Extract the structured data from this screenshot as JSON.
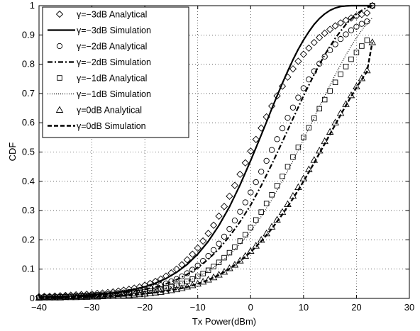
{
  "chart_data": {
    "type": "line",
    "title": "",
    "xlabel": "Tx Power(dBm)",
    "ylabel": "CDF",
    "xlim": [
      -40,
      30
    ],
    "ylim": [
      0,
      1
    ],
    "xticks": [
      -40,
      -30,
      -20,
      -10,
      0,
      10,
      20,
      30
    ],
    "yticks": [
      0,
      0.1,
      0.2,
      0.3,
      0.4,
      0.5,
      0.6,
      0.7,
      0.8,
      0.9,
      1
    ],
    "xtick_labels": [
      "−40",
      "−30",
      "−20",
      "−10",
      "0",
      "10",
      "20",
      "30"
    ],
    "ytick_labels": [
      "0",
      "0.1",
      "0.2",
      "0.3",
      "0.4",
      "0.5",
      "0.6",
      "0.7",
      "0.8",
      "0.9",
      "1"
    ],
    "grid": true,
    "grid_style": "dotted",
    "legend_position": "top-left",
    "series": [
      {
        "name": "γ=−3dB Analytical",
        "style": "markers",
        "marker": "diamond",
        "color": "#000000",
        "x": [
          -40,
          -39,
          -38,
          -37,
          -36,
          -35,
          -34,
          -33,
          -32,
          -31,
          -30,
          -29,
          -28,
          -27,
          -26,
          -25,
          -24,
          -23,
          -22,
          -21,
          -20,
          -19,
          -18,
          -17,
          -16,
          -15,
          -14,
          -13,
          -12,
          -11,
          -10,
          -9,
          -8,
          -7,
          -6,
          -5,
          -4,
          -3,
          -2,
          -1,
          0,
          1,
          2,
          3,
          4,
          5,
          6,
          7,
          8,
          9,
          10,
          11,
          12,
          13,
          14,
          15,
          16,
          17,
          18,
          19,
          20,
          21,
          22,
          23
        ],
        "y": [
          0.006,
          0.007,
          0.007,
          0.008,
          0.009,
          0.01,
          0.011,
          0.012,
          0.013,
          0.014,
          0.015,
          0.017,
          0.018,
          0.02,
          0.022,
          0.025,
          0.028,
          0.031,
          0.035,
          0.039,
          0.045,
          0.051,
          0.058,
          0.066,
          0.076,
          0.087,
          0.1,
          0.115,
          0.132,
          0.151,
          0.172,
          0.196,
          0.222,
          0.25,
          0.281,
          0.314,
          0.349,
          0.386,
          0.424,
          0.463,
          0.503,
          0.543,
          0.582,
          0.62,
          0.657,
          0.692,
          0.725,
          0.756,
          0.784,
          0.81,
          0.834,
          0.855,
          0.874,
          0.891,
          0.906,
          0.919,
          0.931,
          0.941,
          0.95,
          0.958,
          0.965,
          0.97,
          0.975,
          1.0
        ]
      },
      {
        "name": "γ=−3dB Simulation",
        "style": "solid",
        "color": "#000000",
        "x": [
          -40,
          -38,
          -36,
          -34,
          -32,
          -30,
          -28,
          -26,
          -24,
          -22,
          -20,
          -18,
          -16,
          -14,
          -12,
          -10,
          -8,
          -6,
          -4,
          -2,
          0,
          1,
          2,
          3,
          4,
          5,
          6,
          7,
          8,
          9,
          10,
          11,
          12,
          13,
          14,
          15,
          16,
          17,
          18,
          19,
          20,
          21,
          22,
          23
        ],
        "y": [
          0.005,
          0.006,
          0.007,
          0.008,
          0.01,
          0.012,
          0.015,
          0.019,
          0.024,
          0.031,
          0.04,
          0.052,
          0.068,
          0.089,
          0.116,
          0.151,
          0.195,
          0.249,
          0.313,
          0.388,
          0.471,
          0.514,
          0.558,
          0.603,
          0.648,
          0.692,
          0.735,
          0.776,
          0.815,
          0.851,
          0.883,
          0.911,
          0.936,
          0.956,
          0.972,
          0.984,
          0.992,
          0.997,
          0.999,
          1.0,
          1.0,
          1.0,
          1.0,
          1.0
        ]
      },
      {
        "name": "γ=−2dB Analytical",
        "style": "markers",
        "marker": "circle",
        "color": "#000000",
        "x": [
          -40,
          -39,
          -38,
          -37,
          -36,
          -35,
          -34,
          -33,
          -32,
          -31,
          -30,
          -29,
          -28,
          -27,
          -26,
          -25,
          -24,
          -23,
          -22,
          -21,
          -20,
          -19,
          -18,
          -17,
          -16,
          -15,
          -14,
          -13,
          -12,
          -11,
          -10,
          -9,
          -8,
          -7,
          -6,
          -5,
          -4,
          -3,
          -2,
          -1,
          0,
          1,
          2,
          3,
          4,
          5,
          6,
          7,
          8,
          9,
          10,
          11,
          12,
          13,
          14,
          15,
          16,
          17,
          18,
          19,
          20,
          21,
          22,
          23
        ],
        "y": [
          0.004,
          0.005,
          0.005,
          0.006,
          0.006,
          0.007,
          0.007,
          0.008,
          0.009,
          0.01,
          0.011,
          0.012,
          0.013,
          0.014,
          0.016,
          0.018,
          0.02,
          0.022,
          0.025,
          0.028,
          0.031,
          0.035,
          0.04,
          0.045,
          0.051,
          0.058,
          0.066,
          0.075,
          0.086,
          0.098,
          0.112,
          0.128,
          0.145,
          0.165,
          0.187,
          0.211,
          0.237,
          0.266,
          0.296,
          0.328,
          0.362,
          0.397,
          0.433,
          0.47,
          0.507,
          0.544,
          0.581,
          0.617,
          0.652,
          0.686,
          0.718,
          0.748,
          0.776,
          0.802,
          0.826,
          0.848,
          0.868,
          0.886,
          0.902,
          0.916,
          0.928,
          0.938,
          0.946,
          1.0
        ]
      },
      {
        "name": "γ=−2dB Simulation",
        "style": "dashdot",
        "color": "#000000",
        "x": [
          -40,
          -38,
          -36,
          -34,
          -32,
          -30,
          -28,
          -26,
          -24,
          -22,
          -20,
          -18,
          -16,
          -14,
          -12,
          -10,
          -8,
          -6,
          -4,
          -2,
          0,
          2,
          4,
          6,
          8,
          10,
          12,
          14,
          16,
          18,
          19,
          20,
          21,
          22,
          23
        ],
        "y": [
          0.004,
          0.005,
          0.006,
          0.007,
          0.008,
          0.01,
          0.013,
          0.016,
          0.02,
          0.025,
          0.031,
          0.039,
          0.05,
          0.064,
          0.082,
          0.105,
          0.134,
          0.169,
          0.212,
          0.262,
          0.319,
          0.385,
          0.458,
          0.535,
          0.614,
          0.692,
          0.765,
          0.832,
          0.889,
          0.936,
          0.955,
          0.971,
          0.984,
          0.994,
          1.0
        ]
      },
      {
        "name": "γ=−1dB Analytical",
        "style": "markers",
        "marker": "square",
        "color": "#000000",
        "x": [
          -40,
          -39,
          -38,
          -37,
          -36,
          -35,
          -34,
          -33,
          -32,
          -31,
          -30,
          -29,
          -28,
          -27,
          -26,
          -25,
          -24,
          -23,
          -22,
          -21,
          -20,
          -19,
          -18,
          -17,
          -16,
          -15,
          -14,
          -13,
          -12,
          -11,
          -10,
          -9,
          -8,
          -7,
          -6,
          -5,
          -4,
          -3,
          -2,
          -1,
          0,
          1,
          2,
          3,
          4,
          5,
          6,
          7,
          8,
          9,
          10,
          11,
          12,
          13,
          14,
          15,
          16,
          17,
          18,
          19,
          20,
          21,
          22,
          23
        ],
        "y": [
          0.003,
          0.004,
          0.004,
          0.004,
          0.005,
          0.005,
          0.006,
          0.006,
          0.007,
          0.007,
          0.008,
          0.009,
          0.01,
          0.011,
          0.012,
          0.013,
          0.015,
          0.016,
          0.018,
          0.02,
          0.023,
          0.025,
          0.028,
          0.032,
          0.036,
          0.04,
          0.045,
          0.051,
          0.058,
          0.066,
          0.075,
          0.085,
          0.096,
          0.109,
          0.123,
          0.139,
          0.156,
          0.175,
          0.196,
          0.218,
          0.242,
          0.268,
          0.295,
          0.324,
          0.354,
          0.385,
          0.417,
          0.45,
          0.483,
          0.516,
          0.55,
          0.583,
          0.616,
          0.648,
          0.679,
          0.709,
          0.738,
          0.766,
          0.792,
          0.817,
          0.84,
          0.862,
          0.882,
          1.0
        ]
      },
      {
        "name": "γ=−1dB Simulation",
        "style": "dotted",
        "color": "#000000",
        "x": [
          -40,
          -38,
          -36,
          -34,
          -32,
          -30,
          -28,
          -26,
          -24,
          -22,
          -20,
          -18,
          -16,
          -14,
          -12,
          -10,
          -8,
          -6,
          -4,
          -2,
          0,
          2,
          4,
          6,
          8,
          10,
          12,
          14,
          16,
          18,
          19,
          20,
          21,
          22,
          23
        ],
        "y": [
          0.003,
          0.004,
          0.005,
          0.005,
          0.006,
          0.008,
          0.01,
          0.012,
          0.015,
          0.018,
          0.023,
          0.029,
          0.036,
          0.046,
          0.058,
          0.074,
          0.094,
          0.119,
          0.149,
          0.186,
          0.229,
          0.28,
          0.337,
          0.401,
          0.47,
          0.543,
          0.618,
          0.692,
          0.764,
          0.831,
          0.862,
          0.89,
          0.916,
          0.939,
          0.958
        ]
      },
      {
        "name": "γ=0dB Analytical",
        "style": "markers",
        "marker": "triangle",
        "color": "#000000",
        "x": [
          -40,
          -39,
          -38,
          -37,
          -36,
          -35,
          -34,
          -33,
          -32,
          -31,
          -30,
          -29,
          -28,
          -27,
          -26,
          -25,
          -24,
          -23,
          -22,
          -21,
          -20,
          -19,
          -18,
          -17,
          -16,
          -15,
          -14,
          -13,
          -12,
          -11,
          -10,
          -9,
          -8,
          -7,
          -6,
          -5,
          -4,
          -3,
          -2,
          -1,
          0,
          1,
          2,
          3,
          4,
          5,
          6,
          7,
          8,
          9,
          10,
          11,
          12,
          13,
          14,
          15,
          16,
          17,
          18,
          19,
          20,
          21,
          22,
          23
        ],
        "y": [
          0.002,
          0.003,
          0.003,
          0.003,
          0.003,
          0.004,
          0.004,
          0.004,
          0.005,
          0.005,
          0.006,
          0.006,
          0.007,
          0.008,
          0.008,
          0.009,
          0.01,
          0.011,
          0.013,
          0.014,
          0.016,
          0.018,
          0.02,
          0.022,
          0.025,
          0.028,
          0.031,
          0.035,
          0.04,
          0.045,
          0.05,
          0.057,
          0.064,
          0.072,
          0.081,
          0.091,
          0.103,
          0.115,
          0.129,
          0.145,
          0.162,
          0.18,
          0.2,
          0.222,
          0.245,
          0.269,
          0.295,
          0.322,
          0.35,
          0.38,
          0.41,
          0.441,
          0.473,
          0.505,
          0.537,
          0.569,
          0.601,
          0.633,
          0.664,
          0.694,
          0.724,
          0.752,
          0.779,
          0.875
        ]
      },
      {
        "name": "γ=0dB Simulation",
        "style": "dashed",
        "color": "#000000",
        "x": [
          -40,
          -38,
          -36,
          -34,
          -32,
          -30,
          -28,
          -26,
          -24,
          -22,
          -20,
          -18,
          -16,
          -14,
          -12,
          -10,
          -8,
          -6,
          -4,
          -2,
          0,
          2,
          4,
          6,
          8,
          10,
          12,
          14,
          16,
          18,
          19,
          20,
          21,
          22,
          23
        ],
        "y": [
          0.002,
          0.003,
          0.003,
          0.004,
          0.005,
          0.006,
          0.007,
          0.008,
          0.01,
          0.013,
          0.016,
          0.02,
          0.025,
          0.031,
          0.039,
          0.05,
          0.063,
          0.08,
          0.101,
          0.127,
          0.158,
          0.195,
          0.238,
          0.287,
          0.341,
          0.4,
          0.463,
          0.528,
          0.594,
          0.659,
          0.69,
          0.72,
          0.748,
          0.775,
          0.875
        ]
      }
    ]
  }
}
